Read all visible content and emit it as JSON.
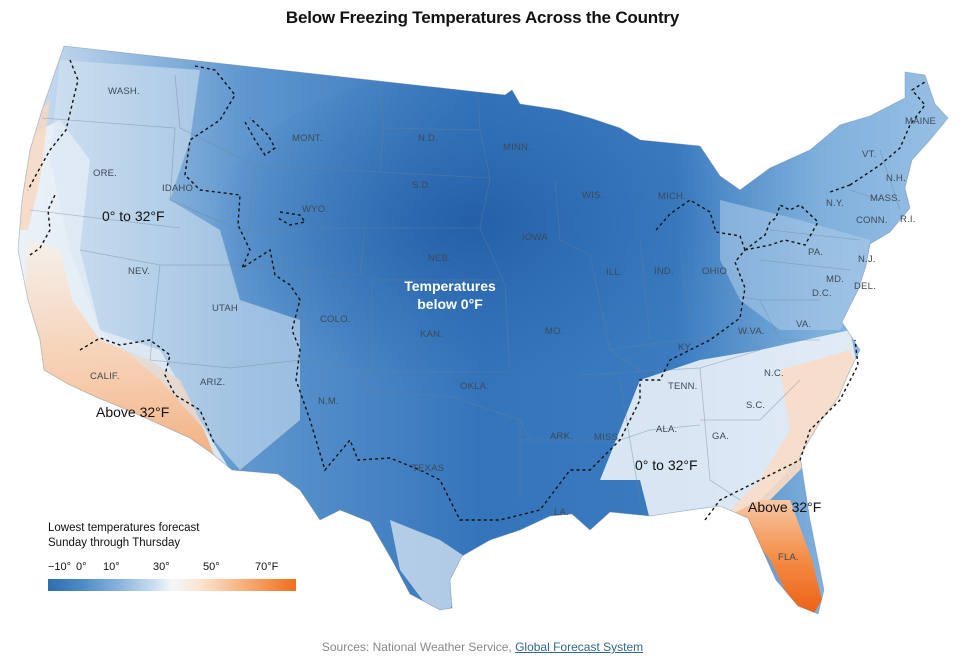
{
  "title": "Below Freezing Temperatures Across the Country",
  "states": [
    {
      "abbr": "WASH."
    },
    {
      "abbr": "MONT."
    },
    {
      "abbr": "N.D."
    },
    {
      "abbr": "MINN."
    },
    {
      "abbr": "ORE."
    },
    {
      "abbr": "IDAHO"
    },
    {
      "abbr": "S.D."
    },
    {
      "abbr": "WIS."
    },
    {
      "abbr": "WYO."
    },
    {
      "abbr": "MICH."
    },
    {
      "abbr": "IOWA"
    },
    {
      "abbr": "NEB."
    },
    {
      "abbr": "NEV."
    },
    {
      "abbr": "ILL."
    },
    {
      "abbr": "IND."
    },
    {
      "abbr": "OHIO"
    },
    {
      "abbr": "UTAH"
    },
    {
      "abbr": "COLO."
    },
    {
      "abbr": "KAN."
    },
    {
      "abbr": "MO."
    },
    {
      "abbr": "KY."
    },
    {
      "abbr": "W.VA."
    },
    {
      "abbr": "VA."
    },
    {
      "abbr": "CALIF."
    },
    {
      "abbr": "ARIZ."
    },
    {
      "abbr": "OKLA."
    },
    {
      "abbr": "TENN."
    },
    {
      "abbr": "N.C."
    },
    {
      "abbr": "N.M."
    },
    {
      "abbr": "ARK."
    },
    {
      "abbr": "MISS."
    },
    {
      "abbr": "ALA."
    },
    {
      "abbr": "GA."
    },
    {
      "abbr": "S.C."
    },
    {
      "abbr": "TEXAS"
    },
    {
      "abbr": "LA."
    },
    {
      "abbr": "FLA."
    },
    {
      "abbr": "MAINE"
    },
    {
      "abbr": "VT."
    },
    {
      "abbr": "N.H."
    },
    {
      "abbr": "N.Y."
    },
    {
      "abbr": "MASS."
    },
    {
      "abbr": "CONN."
    },
    {
      "abbr": "R.I."
    },
    {
      "abbr": "PA."
    },
    {
      "abbr": "N.J."
    },
    {
      "abbr": "MD."
    },
    {
      "abbr": "DEL."
    },
    {
      "abbr": "D.C."
    }
  ],
  "zones": {
    "west_mid": "0° to 32°F",
    "center_line1": "Temperatures",
    "center_line2": "below 0°F",
    "west_warm": "Above 32°F",
    "southeast_mid": "0° to 32°F",
    "southeast_warm": "Above 32°F"
  },
  "legend": {
    "title_line1": "Lowest temperatures forecast",
    "title_line2": "Sunday through Thursday",
    "ticks": [
      "−10°",
      "0°",
      "10°",
      "30°",
      "50°",
      "70°F"
    ],
    "tick_values": [
      -10,
      0,
      10,
      30,
      50,
      70
    ],
    "colors": {
      "very_cold": "#2e6db2",
      "cold": "#4f8bc8",
      "cool": "#c7dcef",
      "neutral": "#f3f6fa",
      "mild": "#fbe3d0",
      "warm": "#f48d46",
      "hot": "#ef6f1d"
    }
  },
  "sources": {
    "prefix": "Sources: National Weather Service, ",
    "link": "Global Forecast System"
  }
}
